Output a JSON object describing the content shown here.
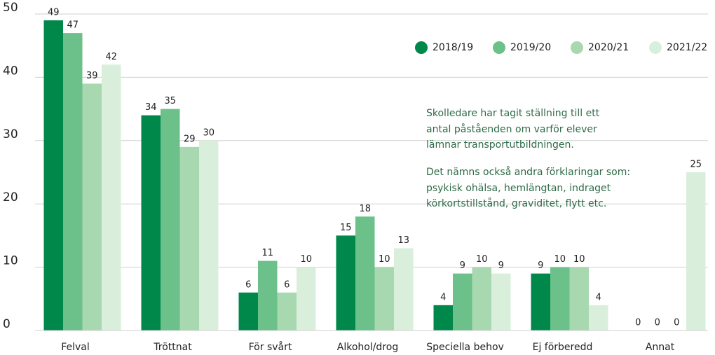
{
  "chart_data": {
    "type": "bar",
    "categories": [
      "Felval",
      "Tröttnat",
      "För svårt",
      "Alkohol/drog",
      "Speciella behov",
      "Ej förberedd",
      "Annat"
    ],
    "series": [
      {
        "name": "2018/19",
        "color": "#00874a",
        "values": [
          49,
          34,
          6,
          15,
          4,
          9,
          0
        ]
      },
      {
        "name": "2019/20",
        "color": "#6cc18a",
        "values": [
          47,
          35,
          11,
          18,
          9,
          10,
          0
        ]
      },
      {
        "name": "2020/21",
        "color": "#a8d8b0",
        "values": [
          39,
          29,
          6,
          10,
          10,
          10,
          0
        ]
      },
      {
        "name": "2021/22",
        "color": "#d9efdc",
        "values": [
          42,
          30,
          10,
          13,
          9,
          4,
          25
        ]
      }
    ],
    "ylim": [
      0,
      50
    ],
    "yticks": [
      0,
      10,
      20,
      30,
      40,
      50
    ],
    "grid": true,
    "annotation": [
      "Skolledare har tagit ställning till ett",
      "antal påståenden om varför elever",
      "lämnar transportutbildningen.",
      "Det nämns också andra förklaringar som:",
      "psykisk ohälsa, hemlängtan, indraget",
      "körkortstillstånd, graviditet, flytt etc."
    ]
  }
}
